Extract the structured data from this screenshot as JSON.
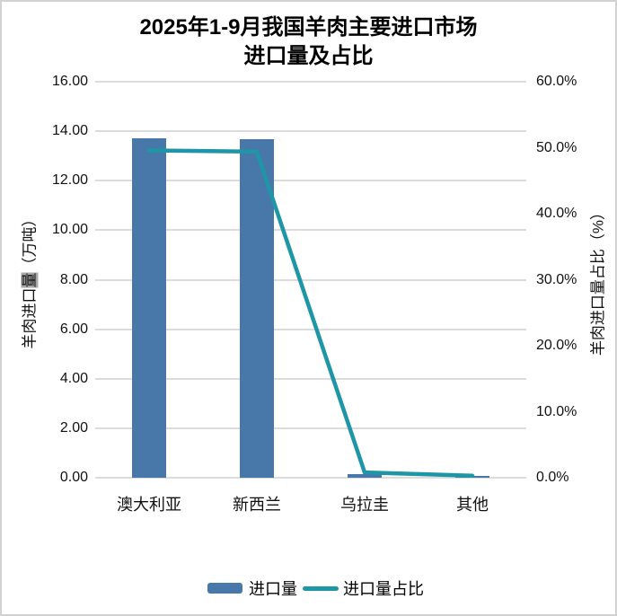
{
  "title": {
    "line1": "2025年1-9月我国羊肉主要进口市场",
    "line2": "进口量及占比"
  },
  "legend": {
    "items": [
      {
        "label": "进口量",
        "type": "bar",
        "color": "#4778A9"
      },
      {
        "label": "进口量占比",
        "type": "line",
        "color": "#1F96A5"
      }
    ],
    "position": "bottom"
  },
  "chart_data": {
    "type": "combo",
    "title": "2025年1-9月我国羊肉主要进口市场 进口量及占比",
    "categories": [
      "澳大利亚",
      "新西兰",
      "乌拉圭",
      "其他"
    ],
    "series": [
      {
        "name": "进口量",
        "type": "bar",
        "axis": "left",
        "unit": "万吨",
        "color": "#4778A9",
        "values": [
          13.7,
          13.68,
          0.15,
          0.07
        ]
      },
      {
        "name": "进口量占比",
        "type": "line",
        "axis": "right",
        "unit": "%",
        "color": "#1F96A5",
        "values": [
          49.6,
          49.4,
          0.8,
          0.3
        ]
      }
    ],
    "left_axis": {
      "label": "羊肉进口量（万吨）",
      "highlighted_char": "量",
      "highlighted_char_index": 4,
      "min": 0,
      "max": 16,
      "step": 2,
      "ticks": [
        "0.00",
        "2.00",
        "4.00",
        "6.00",
        "8.00",
        "10.00",
        "12.00",
        "14.00",
        "16.00"
      ]
    },
    "right_axis": {
      "label": "羊肉进口量占比（%）",
      "min": 0,
      "max": 60,
      "step": 10,
      "ticks": [
        "0.0%",
        "10.0%",
        "20.0%",
        "30.0%",
        "40.0%",
        "50.0%",
        "60.0%"
      ]
    },
    "grid": true,
    "legend_position": "bottom"
  },
  "colors": {
    "bar": "#4778A9",
    "line": "#1F96A5",
    "gridline": "#DCDCDC",
    "frame_border": "#D2D2D2",
    "background": "#FFFFFF",
    "text": "#000000",
    "selection_highlight": "#A8A8A8"
  }
}
